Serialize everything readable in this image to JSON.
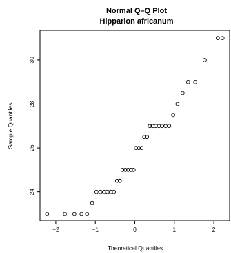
{
  "chart_data": {
    "type": "scatter",
    "title": "Normal Q–Q Plot",
    "subtitle": "Hipparion africanum",
    "xlabel": "Theoretical Quantiles",
    "ylabel": "Sample Quantiles",
    "xlim": [
      -2.4,
      2.4
    ],
    "ylim": [
      22.7,
      31.35
    ],
    "xticks": [
      -2,
      -1,
      0,
      1,
      2
    ],
    "xtick_labels": [
      "−2",
      "−1",
      "0",
      "1",
      "2"
    ],
    "yticks": [
      24,
      26,
      28,
      30
    ],
    "ytick_labels": [
      "24",
      "26",
      "28",
      "30"
    ],
    "grid": false,
    "points": [
      {
        "x": -2.22,
        "y": 23.0
      },
      {
        "x": -1.77,
        "y": 23.0
      },
      {
        "x": -1.53,
        "y": 23.0
      },
      {
        "x": -1.35,
        "y": 23.0
      },
      {
        "x": -1.21,
        "y": 23.0
      },
      {
        "x": -1.08,
        "y": 23.5
      },
      {
        "x": -0.97,
        "y": 24.0
      },
      {
        "x": -0.87,
        "y": 24.0
      },
      {
        "x": -0.78,
        "y": 24.0
      },
      {
        "x": -0.69,
        "y": 24.0
      },
      {
        "x": -0.61,
        "y": 24.0
      },
      {
        "x": -0.53,
        "y": 24.0
      },
      {
        "x": -0.45,
        "y": 24.5
      },
      {
        "x": -0.38,
        "y": 24.5
      },
      {
        "x": -0.31,
        "y": 25.0
      },
      {
        "x": -0.24,
        "y": 25.0
      },
      {
        "x": -0.17,
        "y": 25.0
      },
      {
        "x": -0.1,
        "y": 25.0
      },
      {
        "x": -0.03,
        "y": 25.0
      },
      {
        "x": 0.03,
        "y": 26.0
      },
      {
        "x": 0.1,
        "y": 26.0
      },
      {
        "x": 0.17,
        "y": 26.0
      },
      {
        "x": 0.24,
        "y": 26.5
      },
      {
        "x": 0.31,
        "y": 26.5
      },
      {
        "x": 0.38,
        "y": 27.0
      },
      {
        "x": 0.45,
        "y": 27.0
      },
      {
        "x": 0.53,
        "y": 27.0
      },
      {
        "x": 0.61,
        "y": 27.0
      },
      {
        "x": 0.69,
        "y": 27.0
      },
      {
        "x": 0.78,
        "y": 27.0
      },
      {
        "x": 0.87,
        "y": 27.0
      },
      {
        "x": 0.97,
        "y": 27.5
      },
      {
        "x": 1.08,
        "y": 28.0
      },
      {
        "x": 1.21,
        "y": 28.5
      },
      {
        "x": 1.35,
        "y": 29.0
      },
      {
        "x": 1.53,
        "y": 29.0
      },
      {
        "x": 1.77,
        "y": 30.0
      },
      {
        "x": 2.22,
        "y": 31.0
      },
      {
        "x": 2.1,
        "y": 31.0
      }
    ]
  }
}
